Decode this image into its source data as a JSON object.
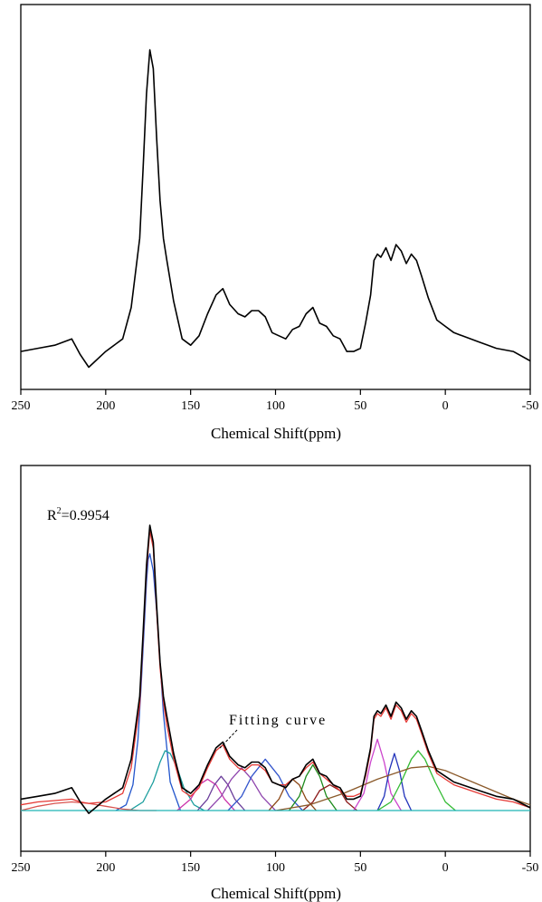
{
  "chart_data": [
    {
      "type": "line",
      "xlabel": "Chemical Shift(ppm)",
      "xlim": [
        250,
        -50
      ],
      "x_ticks": [
        {
          "value": 250,
          "label": "250"
        },
        {
          "value": 200,
          "label": "200"
        },
        {
          "value": 150,
          "label": "150"
        },
        {
          "value": 100,
          "label": "100"
        },
        {
          "value": 50,
          "label": "50"
        },
        {
          "value": 0,
          "label": "0"
        },
        {
          "value": -50,
          "label": "-50"
        }
      ],
      "y_ticks_visible": false,
      "grid": false,
      "series": [
        {
          "color": "#000000",
          "x": [
            250,
            240,
            230,
            220,
            215,
            210,
            200,
            190,
            185,
            180,
            178,
            176,
            174,
            172,
            170,
            168,
            166,
            164,
            160,
            155,
            150,
            145,
            140,
            135,
            131,
            127,
            122,
            118,
            114,
            110,
            106,
            102,
            98,
            94,
            90,
            86,
            82,
            78,
            74,
            70,
            66,
            62,
            58,
            54,
            50,
            47,
            44,
            42,
            40,
            38,
            35,
            32,
            29,
            26,
            23,
            20,
            17,
            14,
            10,
            5,
            0,
            -5,
            -10,
            -20,
            -30,
            -40,
            -50
          ],
          "y": [
            0.04,
            0.05,
            0.06,
            0.08,
            0.03,
            -0.01,
            0.04,
            0.08,
            0.18,
            0.4,
            0.62,
            0.86,
            1.0,
            0.94,
            0.72,
            0.52,
            0.4,
            0.33,
            0.2,
            0.08,
            0.06,
            0.09,
            0.16,
            0.22,
            0.24,
            0.19,
            0.16,
            0.15,
            0.17,
            0.17,
            0.15,
            0.1,
            0.09,
            0.08,
            0.11,
            0.12,
            0.16,
            0.18,
            0.13,
            0.12,
            0.09,
            0.08,
            0.04,
            0.04,
            0.05,
            0.13,
            0.22,
            0.33,
            0.35,
            0.34,
            0.37,
            0.33,
            0.38,
            0.36,
            0.32,
            0.35,
            0.33,
            0.28,
            0.21,
            0.14,
            0.12,
            0.1,
            0.09,
            0.07,
            0.05,
            0.04,
            0.01
          ]
        }
      ]
    },
    {
      "type": "line",
      "xlabel": "Chemical Shift(ppm)",
      "xlim": [
        250,
        -50
      ],
      "x_ticks": [
        {
          "value": 250,
          "label": "250"
        },
        {
          "value": 200,
          "label": "200"
        },
        {
          "value": 150,
          "label": "150"
        },
        {
          "value": 100,
          "label": "100"
        },
        {
          "value": 50,
          "label": "50"
        },
        {
          "value": 0,
          "label": "0"
        },
        {
          "value": -50,
          "label": "-50"
        }
      ],
      "y_ticks_visible": false,
      "grid": false,
      "annotations": {
        "r2_base": "R",
        "r2_sup": "2",
        "r2_value": "=0.9954",
        "fitting_label": "Fitting curve"
      },
      "series": [
        {
          "color": "#000000",
          "x": [
            250,
            240,
            230,
            220,
            215,
            210,
            200,
            190,
            185,
            180,
            178,
            176,
            174,
            172,
            170,
            168,
            166,
            164,
            160,
            155,
            150,
            145,
            140,
            135,
            131,
            127,
            122,
            118,
            114,
            110,
            106,
            102,
            98,
            94,
            90,
            86,
            82,
            78,
            74,
            70,
            66,
            62,
            58,
            54,
            50,
            47,
            44,
            42,
            40,
            38,
            35,
            32,
            29,
            26,
            23,
            20,
            17,
            14,
            10,
            5,
            0,
            -5,
            -10,
            -20,
            -30,
            -40,
            -50
          ],
          "y": [
            0.04,
            0.05,
            0.06,
            0.08,
            0.03,
            -0.01,
            0.04,
            0.08,
            0.18,
            0.4,
            0.62,
            0.86,
            1.0,
            0.94,
            0.72,
            0.52,
            0.4,
            0.33,
            0.2,
            0.08,
            0.06,
            0.09,
            0.16,
            0.22,
            0.24,
            0.19,
            0.16,
            0.15,
            0.17,
            0.17,
            0.15,
            0.1,
            0.09,
            0.08,
            0.11,
            0.12,
            0.16,
            0.18,
            0.13,
            0.12,
            0.09,
            0.08,
            0.04,
            0.04,
            0.05,
            0.13,
            0.22,
            0.33,
            0.35,
            0.34,
            0.37,
            0.33,
            0.38,
            0.36,
            0.32,
            0.35,
            0.33,
            0.28,
            0.21,
            0.14,
            0.12,
            0.1,
            0.09,
            0.07,
            0.05,
            0.04,
            0.01
          ]
        },
        {
          "color": "#e53935",
          "x": [
            250,
            240,
            230,
            220,
            215,
            210,
            200,
            190,
            185,
            180,
            178,
            176,
            174,
            172,
            170,
            168,
            166,
            164,
            160,
            155,
            150,
            145,
            140,
            135,
            131,
            127,
            122,
            118,
            114,
            110,
            106,
            102,
            98,
            94,
            90,
            86,
            82,
            78,
            74,
            70,
            66,
            62,
            58,
            54,
            50,
            47,
            44,
            42,
            40,
            38,
            35,
            32,
            29,
            26,
            23,
            20,
            17,
            14,
            10,
            5,
            0,
            -5,
            -10,
            -20,
            -30,
            -40,
            -50
          ],
          "y": [
            0.02,
            0.03,
            0.035,
            0.04,
            0.03,
            0.025,
            0.03,
            0.06,
            0.15,
            0.37,
            0.6,
            0.84,
            0.98,
            0.92,
            0.7,
            0.5,
            0.38,
            0.3,
            0.18,
            0.07,
            0.05,
            0.08,
            0.15,
            0.21,
            0.23,
            0.18,
            0.15,
            0.14,
            0.16,
            0.16,
            0.14,
            0.1,
            0.09,
            0.09,
            0.11,
            0.12,
            0.15,
            0.17,
            0.13,
            0.11,
            0.09,
            0.07,
            0.05,
            0.05,
            0.06,
            0.12,
            0.21,
            0.32,
            0.34,
            0.33,
            0.36,
            0.32,
            0.37,
            0.35,
            0.31,
            0.34,
            0.32,
            0.27,
            0.2,
            0.13,
            0.11,
            0.09,
            0.08,
            0.06,
            0.04,
            0.03,
            0.01
          ]
        },
        {
          "color": "#2255cc",
          "x": [
            194,
            188,
            184,
            181,
            179,
            177,
            176,
            175,
            174,
            172,
            170,
            168,
            166,
            162,
            156
          ],
          "y": [
            0.0,
            0.02,
            0.09,
            0.25,
            0.45,
            0.68,
            0.8,
            0.88,
            0.9,
            0.84,
            0.7,
            0.52,
            0.34,
            0.1,
            0.0
          ]
        },
        {
          "color": "#1b9e9e",
          "x": [
            186,
            178,
            172,
            168,
            165,
            162,
            158,
            154,
            148,
            142
          ],
          "y": [
            0.0,
            0.03,
            0.1,
            0.17,
            0.21,
            0.2,
            0.15,
            0.08,
            0.02,
            0.0
          ]
        },
        {
          "color": "#cc33aa",
          "x": [
            158,
            150,
            145,
            140,
            135,
            130,
            124
          ],
          "y": [
            0.0,
            0.04,
            0.09,
            0.11,
            0.09,
            0.04,
            0.0
          ]
        },
        {
          "color": "#6a3d9a",
          "x": [
            146,
            140,
            136,
            132,
            128,
            124,
            118
          ],
          "y": [
            0.0,
            0.04,
            0.09,
            0.12,
            0.09,
            0.04,
            0.0
          ]
        },
        {
          "color": "#8e44ad",
          "x": [
            140,
            132,
            126,
            120,
            114,
            108,
            100
          ],
          "y": [
            0.0,
            0.05,
            0.11,
            0.15,
            0.11,
            0.05,
            0.0
          ]
        },
        {
          "color": "#3355cc",
          "x": [
            128,
            120,
            114,
            106,
            98,
            92,
            84
          ],
          "y": [
            0.0,
            0.05,
            0.12,
            0.18,
            0.12,
            0.05,
            0.0
          ]
        },
        {
          "color": "#8b4513",
          "x": [
            104,
            98,
            94,
            90,
            86,
            82,
            76
          ],
          "y": [
            0.0,
            0.04,
            0.09,
            0.11,
            0.09,
            0.04,
            0.0
          ]
        },
        {
          "color": "#1a8a1a",
          "x": [
            92,
            86,
            82,
            78,
            74,
            70,
            64
          ],
          "y": [
            0.0,
            0.05,
            0.12,
            0.16,
            0.12,
            0.05,
            0.0
          ]
        },
        {
          "color": "#8b1a1a",
          "x": [
            84,
            78,
            74,
            68,
            62,
            58,
            52
          ],
          "y": [
            0.0,
            0.03,
            0.07,
            0.09,
            0.07,
            0.03,
            0.0
          ]
        },
        {
          "color": "#cc44cc",
          "x": [
            54,
            48,
            44,
            40,
            36,
            32,
            26
          ],
          "y": [
            0.0,
            0.06,
            0.17,
            0.25,
            0.17,
            0.06,
            0.0
          ]
        },
        {
          "color": "#2233bb",
          "x": [
            40,
            36,
            33,
            30,
            27,
            24,
            20
          ],
          "y": [
            0.0,
            0.05,
            0.14,
            0.2,
            0.14,
            0.05,
            0.0
          ]
        },
        {
          "color": "#33bb33",
          "x": [
            40,
            32,
            26,
            20,
            16,
            12,
            6,
            0,
            -6
          ],
          "y": [
            0.0,
            0.03,
            0.1,
            0.18,
            0.21,
            0.18,
            0.1,
            0.03,
            0.0
          ]
        },
        {
          "color": "#8b5a2b",
          "x": [
            100,
            80,
            60,
            40,
            20,
            10,
            0,
            -20,
            -40,
            -50
          ],
          "y": [
            0.0,
            0.02,
            0.06,
            0.11,
            0.15,
            0.155,
            0.14,
            0.09,
            0.04,
            0.02
          ]
        },
        {
          "color": "#d9534f",
          "x": [
            250,
            240,
            230,
            220,
            210,
            200,
            190,
            180,
            170
          ],
          "y": [
            0.0,
            0.015,
            0.025,
            0.03,
            0.025,
            0.015,
            0.005,
            0.0,
            0.0
          ]
        },
        {
          "color": "#1fb5b5",
          "x": [
            250,
            -50
          ],
          "y": [
            0.0,
            0.0
          ]
        }
      ]
    }
  ]
}
